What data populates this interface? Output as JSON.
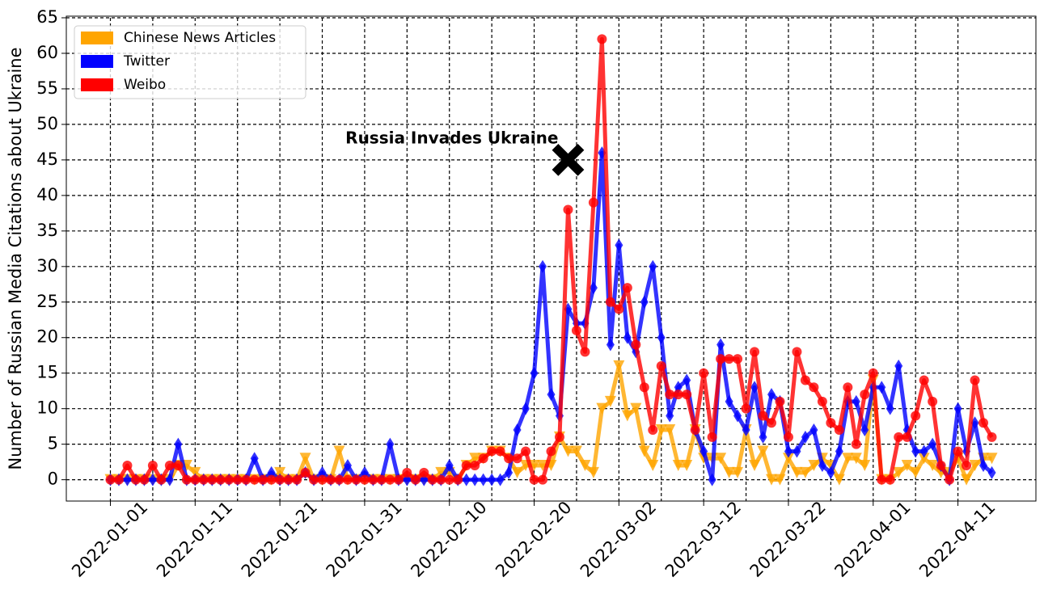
{
  "chart_data": {
    "type": "line",
    "y_label": "Number of Russian Media Citations about Ukraine",
    "x": [
      "2022-01-01",
      "2022-01-02",
      "2022-01-03",
      "2022-01-04",
      "2022-01-05",
      "2022-01-06",
      "2022-01-07",
      "2022-01-08",
      "2022-01-09",
      "2022-01-10",
      "2022-01-11",
      "2022-01-12",
      "2022-01-13",
      "2022-01-14",
      "2022-01-15",
      "2022-01-16",
      "2022-01-17",
      "2022-01-18",
      "2022-01-19",
      "2022-01-20",
      "2022-01-21",
      "2022-01-22",
      "2022-01-23",
      "2022-01-24",
      "2022-01-25",
      "2022-01-26",
      "2022-01-27",
      "2022-01-28",
      "2022-01-29",
      "2022-01-30",
      "2022-01-31",
      "2022-02-01",
      "2022-02-02",
      "2022-02-03",
      "2022-02-04",
      "2022-02-05",
      "2022-02-06",
      "2022-02-07",
      "2022-02-08",
      "2022-02-09",
      "2022-02-10",
      "2022-02-11",
      "2022-02-12",
      "2022-02-13",
      "2022-02-14",
      "2022-02-15",
      "2022-02-16",
      "2022-02-17",
      "2022-02-18",
      "2022-02-19",
      "2022-02-20",
      "2022-02-21",
      "2022-02-22",
      "2022-02-23",
      "2022-02-24",
      "2022-02-25",
      "2022-02-26",
      "2022-02-27",
      "2022-02-28",
      "2022-03-01",
      "2022-03-02",
      "2022-03-03",
      "2022-03-04",
      "2022-03-05",
      "2022-03-06",
      "2022-03-07",
      "2022-03-08",
      "2022-03-09",
      "2022-03-10",
      "2022-03-11",
      "2022-03-12",
      "2022-03-13",
      "2022-03-14",
      "2022-03-15",
      "2022-03-16",
      "2022-03-17",
      "2022-03-18",
      "2022-03-19",
      "2022-03-20",
      "2022-03-21",
      "2022-03-22",
      "2022-03-23",
      "2022-03-24",
      "2022-03-25",
      "2022-03-26",
      "2022-03-27",
      "2022-03-28",
      "2022-03-29",
      "2022-03-30",
      "2022-03-31",
      "2022-04-01",
      "2022-04-02",
      "2022-04-03",
      "2022-04-04",
      "2022-04-05",
      "2022-04-06",
      "2022-04-07",
      "2022-04-08",
      "2022-04-09",
      "2022-04-10",
      "2022-04-11",
      "2022-04-12",
      "2022-04-13",
      "2022-04-14",
      "2022-04-15"
    ],
    "series": [
      {
        "name": "Chinese News Articles",
        "color": "#ffa500",
        "marker": "v",
        "values": [
          0,
          0,
          0,
          0,
          0,
          0,
          0,
          0,
          2,
          2,
          1,
          0,
          0,
          0,
          0,
          0,
          0,
          0,
          0,
          0,
          1,
          0,
          0,
          3,
          0,
          0,
          0,
          4,
          0,
          0,
          0,
          0,
          0,
          0,
          0,
          0,
          0,
          0,
          0,
          1,
          1,
          0,
          2,
          3,
          3,
          4,
          4,
          3,
          1,
          2,
          2,
          2,
          2,
          6,
          4,
          4,
          2,
          1,
          10,
          11,
          16,
          9,
          10,
          4,
          2,
          7,
          7,
          2,
          2,
          7,
          3,
          3,
          3,
          1,
          1,
          7,
          2,
          4,
          0,
          0,
          3,
          1,
          1,
          2,
          3,
          2,
          0,
          3,
          3,
          2,
          14,
          0,
          0,
          1,
          2,
          1,
          3,
          2,
          1,
          1,
          3,
          0,
          2,
          3,
          3
        ]
      },
      {
        "name": "Twitter",
        "color": "#0000ff",
        "marker": "d",
        "values": [
          0,
          0,
          0,
          0,
          0,
          0,
          0,
          0,
          5,
          0,
          0,
          0,
          0,
          0,
          0,
          0,
          0,
          3,
          0,
          1,
          0,
          0,
          0,
          1,
          0,
          1,
          0,
          0,
          2,
          0,
          1,
          0,
          0,
          5,
          0,
          0,
          0,
          0,
          0,
          0,
          2,
          0,
          0,
          0,
          0,
          0,
          0,
          1,
          7,
          10,
          15,
          30,
          12,
          9,
          24,
          22,
          22,
          27,
          46,
          19,
          33,
          20,
          18,
          25,
          30,
          20,
          9,
          13,
          14,
          7,
          4,
          0,
          19,
          11,
          9,
          7,
          13,
          6,
          12,
          11,
          4,
          4,
          6,
          7,
          2,
          1,
          4,
          11,
          11,
          7,
          13,
          13,
          10,
          16,
          7,
          4,
          4,
          5,
          2,
          0,
          10,
          4,
          8,
          2,
          1
        ]
      },
      {
        "name": "Weibo",
        "color": "#ff0000",
        "marker": "o",
        "values": [
          0,
          0,
          2,
          0,
          0,
          2,
          0,
          2,
          2,
          0,
          0,
          0,
          0,
          0,
          0,
          0,
          0,
          0,
          0,
          0,
          0,
          0,
          0,
          1,
          0,
          0,
          0,
          0,
          0,
          0,
          0,
          0,
          0,
          0,
          0,
          1,
          0,
          1,
          0,
          0,
          0,
          0,
          2,
          2,
          3,
          4,
          4,
          3,
          3,
          4,
          0,
          0,
          4,
          6,
          38,
          21,
          18,
          39,
          62,
          25,
          24,
          27,
          19,
          13,
          7,
          16,
          12,
          12,
          12,
          7,
          15,
          6,
          17,
          17,
          17,
          10,
          18,
          9,
          8,
          11,
          6,
          18,
          14,
          13,
          11,
          8,
          7,
          13,
          5,
          12,
          15,
          0,
          0,
          6,
          6,
          9,
          14,
          11,
          2,
          0,
          4,
          2,
          14,
          8,
          6
        ]
      }
    ],
    "annotation": {
      "text": "Russia Invades Ukraine",
      "x": "2022-02-24",
      "y": 45
    },
    "ylim": [
      -3,
      65
    ],
    "yticks": [
      0,
      5,
      10,
      15,
      20,
      25,
      30,
      35,
      40,
      45,
      50,
      55,
      60,
      65
    ],
    "xticks": [
      "2022-01-01",
      "2022-01-11",
      "2022-01-21",
      "2022-01-31",
      "2022-02-10",
      "2022-02-20",
      "2022-03-02",
      "2022-03-12",
      "2022-03-22",
      "2022-04-01",
      "2022-04-11"
    ],
    "xticks_minor": [
      "2022-01-06",
      "2022-01-16",
      "2022-01-26",
      "2022-02-05",
      "2022-02-15",
      "2022-02-25",
      "2022-03-07",
      "2022-03-17",
      "2022-03-27",
      "2022-04-06"
    ],
    "grid": true,
    "legend": "upper left"
  }
}
